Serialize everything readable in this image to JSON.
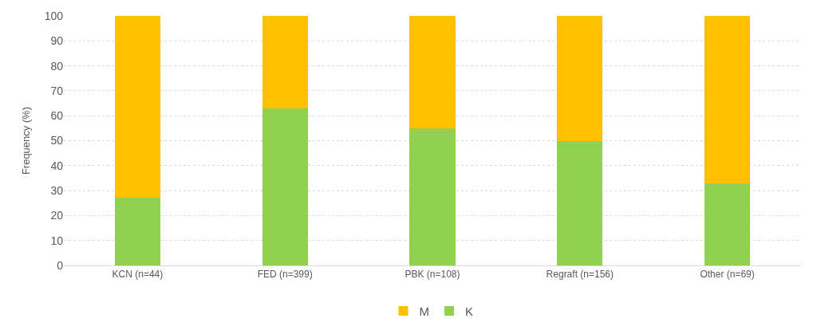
{
  "chart_data": {
    "type": "bar",
    "stacked": true,
    "ylabel": "Frequency (%)",
    "categories": [
      "KCN (n=44)",
      "FED (n=399)",
      "PBK (n=108)",
      "Regraft (n=156)",
      "Other (n=69)"
    ],
    "series": [
      {
        "name": "K",
        "color": "#92d050",
        "values": [
          27,
          63,
          55,
          50,
          33
        ]
      },
      {
        "name": "M",
        "color": "#ffc000",
        "values": [
          73,
          37,
          45,
          50,
          67
        ]
      }
    ],
    "ylim": [
      0,
      100
    ],
    "yticks": [
      0,
      10,
      20,
      30,
      40,
      50,
      60,
      70,
      80,
      90,
      100
    ],
    "grid": "y",
    "legend": "bottom"
  }
}
